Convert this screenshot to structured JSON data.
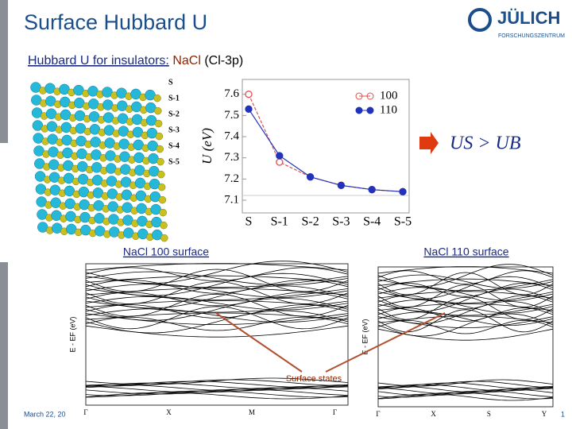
{
  "title": "Surface Hubbard U",
  "subtitle": {
    "lead": "Hubbard U for insulators:",
    "material": "NaCl",
    "orbital": "(Cl-3p)"
  },
  "logo": {
    "name": "JÜLICH",
    "sub": "FORSCHUNGSZENTRUM"
  },
  "layers": [
    "S",
    "S-1",
    "S-2",
    "S-3",
    "S-4",
    "S-5"
  ],
  "conclusion": "US > UB",
  "band_plots": [
    {
      "label": "NaCl 100 surface",
      "ylabel": "E - EF (eV)",
      "kpoints": [
        "Γ",
        "X",
        "M",
        "Γ"
      ]
    },
    {
      "label": "NaCl 110 surface",
      "ylabel": "E - EF (eV)",
      "kpoints": [
        "Γ",
        "X",
        "S",
        "Y"
      ]
    }
  ],
  "annotation": "Surface states",
  "footer": {
    "date": "March 22, 20",
    "page": "1"
  },
  "chart_data": {
    "type": "line",
    "y_label": "U (eV)",
    "categories": [
      "S",
      "S-1",
      "S-2",
      "S-3",
      "S-4",
      "S-5"
    ],
    "series": [
      {
        "name": "100",
        "color": "#e05050",
        "marker": "open",
        "values": [
          7.6,
          7.28,
          7.21,
          7.17,
          7.15,
          7.14
        ]
      },
      {
        "name": "110",
        "color": "#2233bb",
        "marker": "filled",
        "values": [
          7.53,
          7.31,
          7.21,
          7.17,
          7.15,
          7.14
        ]
      }
    ],
    "ylim": [
      7.04,
      7.67
    ],
    "yticks": [
      7.1,
      7.2,
      7.3,
      7.4,
      7.5,
      7.6
    ],
    "legend": "upper right"
  }
}
